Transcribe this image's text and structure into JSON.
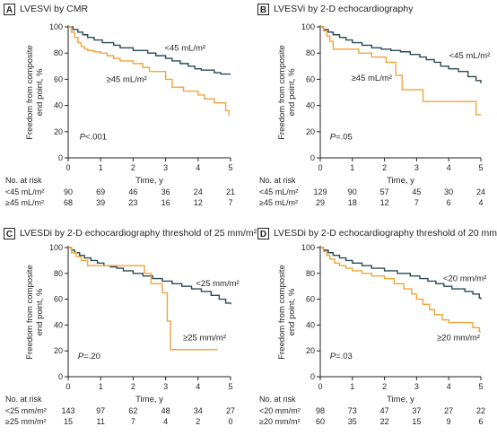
{
  "colors": {
    "lower": "#2b4a55",
    "higher": "#f2a33a",
    "axis": "#231f20"
  },
  "panels": [
    {
      "letter": "A",
      "title": "LVESVi by CMR",
      "ylabel": [
        "Freedom from composite",
        "end point, %"
      ],
      "xlabel": "Time, y",
      "pvalue": "P<.001",
      "low_label": "<45 mL/m²",
      "high_label": "≥45 mL/m²",
      "risk_title": "No. at risk",
      "risk_rows": [
        {
          "label": "<45 mL/m²",
          "values": [
            90,
            69,
            46,
            36,
            24,
            21
          ]
        },
        {
          "label": "≥45 mL/m²",
          "values": [
            68,
            39,
            23,
            16,
            12,
            7
          ]
        }
      ]
    },
    {
      "letter": "B",
      "title": "LVESVi by 2-D echocardiography",
      "ylabel": [
        "Freedom from composite",
        "end point, %"
      ],
      "xlabel": "Time, y",
      "pvalue": "P=.05",
      "low_label": "<45 mL/m²",
      "high_label": "≥45 mL/m²",
      "risk_title": "No. at risk",
      "risk_rows": [
        {
          "label": "<45 mL/m²",
          "values": [
            129,
            90,
            57,
            45,
            30,
            24
          ]
        },
        {
          "label": "≥45 mL/m²",
          "values": [
            29,
            18,
            12,
            7,
            6,
            4
          ]
        }
      ]
    },
    {
      "letter": "C",
      "title": "LVESDi by 2-D echocardiography threshold of 25 mm/m²",
      "ylabel": [
        "Freedom from composite",
        "end point, %"
      ],
      "xlabel": "Time, y",
      "pvalue": "P=.20",
      "low_label": "<25 mm/m²",
      "high_label": "≥25 mm/m²",
      "risk_title": "No. at risk",
      "risk_rows": [
        {
          "label": "<25 mm/m²",
          "values": [
            143,
            97,
            62,
            48,
            34,
            27
          ]
        },
        {
          "label": "≥25 mm/m²",
          "values": [
            15,
            11,
            7,
            4,
            2,
            0
          ]
        }
      ]
    },
    {
      "letter": "D",
      "title": "LVESDi by 2-D echocardiography threshold of 20 mm/m²",
      "ylabel": [
        "Freedom from composite",
        "end point, %"
      ],
      "xlabel": "Time, y",
      "pvalue": "P=.03",
      "low_label": "<20 mm/m²",
      "high_label": "≥20 mm/m²",
      "risk_title": "No. at risk",
      "risk_rows": [
        {
          "label": "<20 mm/m²",
          "values": [
            98,
            73,
            47,
            37,
            27,
            22
          ]
        },
        {
          "label": "≥20 mm/m²",
          "values": [
            60,
            35,
            22,
            15,
            9,
            6
          ]
        }
      ]
    }
  ],
  "chart_data": [
    {
      "type": "line",
      "step": true,
      "xlim": [
        0,
        5
      ],
      "ylim": [
        0,
        100
      ],
      "xticks": [
        0,
        1,
        2,
        3,
        4,
        5
      ],
      "yticks": [
        0,
        20,
        40,
        60,
        80,
        100
      ],
      "series": [
        {
          "name": "<45 mL/m²",
          "color": "lower",
          "x": [
            0,
            0.15,
            0.3,
            0.45,
            0.6,
            0.8,
            1.05,
            1.4,
            1.6,
            2.0,
            2.45,
            2.7,
            3.0,
            3.2,
            3.45,
            3.7,
            3.9,
            4.1,
            4.5,
            4.7,
            5.0
          ],
          "y": [
            100,
            98,
            96,
            94,
            92,
            90,
            88,
            86,
            84,
            82,
            80,
            78,
            76,
            74,
            72,
            70,
            68,
            67,
            65,
            64,
            64
          ]
        },
        {
          "name": "≥45 mL/m²",
          "color": "higher",
          "x": [
            0,
            0.1,
            0.2,
            0.3,
            0.4,
            0.5,
            0.6,
            0.8,
            1.0,
            1.2,
            1.4,
            1.6,
            2.0,
            2.3,
            2.5,
            3.0,
            3.2,
            3.55,
            4.0,
            4.2,
            4.5,
            4.85,
            4.95
          ],
          "y": [
            100,
            96,
            92,
            88,
            85,
            83,
            82,
            81,
            80,
            78,
            76,
            74,
            72,
            69,
            66,
            60,
            54,
            51,
            48,
            45,
            42,
            36,
            32
          ]
        }
      ]
    },
    {
      "type": "line",
      "step": true,
      "xlim": [
        0,
        5
      ],
      "ylim": [
        0,
        100
      ],
      "xticks": [
        0,
        1,
        2,
        3,
        4,
        5
      ],
      "yticks": [
        0,
        20,
        40,
        60,
        80,
        100
      ],
      "series": [
        {
          "name": "<45 mL/m²",
          "color": "lower",
          "x": [
            0,
            0.1,
            0.25,
            0.4,
            0.6,
            0.8,
            1.0,
            1.3,
            1.6,
            1.9,
            2.2,
            2.5,
            2.8,
            3.1,
            3.3,
            3.55,
            3.75,
            4.0,
            4.3,
            4.6,
            4.85,
            5.0
          ],
          "y": [
            100,
            98,
            96,
            94,
            92,
            90,
            88,
            86,
            84,
            83,
            82,
            81,
            79,
            77,
            75,
            73,
            70,
            68,
            66,
            62,
            59,
            57
          ]
        },
        {
          "name": "≥45 mL/m²",
          "color": "higher",
          "x": [
            0,
            0.1,
            0.2,
            0.3,
            0.4,
            1.2,
            1.6,
            2.05,
            2.35,
            2.55,
            3.2,
            4.85,
            5.0
          ],
          "y": [
            100,
            97,
            93,
            89,
            83,
            80,
            77,
            73,
            63,
            52,
            43,
            33,
            33
          ]
        }
      ]
    },
    {
      "type": "line",
      "step": true,
      "xlim": [
        0,
        5
      ],
      "ylim": [
        0,
        100
      ],
      "xticks": [
        0,
        1,
        2,
        3,
        4,
        5
      ],
      "yticks": [
        0,
        20,
        40,
        60,
        80,
        100
      ],
      "series": [
        {
          "name": "<25 mm/m²",
          "color": "lower",
          "x": [
            0,
            0.1,
            0.2,
            0.35,
            0.5,
            0.7,
            0.9,
            1.1,
            1.3,
            1.5,
            1.7,
            2.0,
            2.3,
            2.6,
            2.9,
            3.2,
            3.5,
            3.8,
            4.1,
            4.4,
            4.65,
            4.85,
            5.0
          ],
          "y": [
            100,
            98,
            96,
            94,
            92,
            90,
            88,
            86,
            85,
            84,
            82,
            80,
            78,
            76,
            74,
            72,
            70,
            68,
            66,
            63,
            60,
            57,
            56
          ]
        },
        {
          "name": "≥25 mm/m²",
          "color": "higher",
          "x": [
            0,
            0.1,
            0.25,
            0.4,
            0.6,
            2.35,
            2.55,
            2.9,
            3.05,
            3.15,
            4.6
          ],
          "y": [
            100,
            96,
            93,
            90,
            86,
            80,
            72,
            65,
            43,
            21,
            21
          ]
        }
      ]
    },
    {
      "type": "line",
      "step": true,
      "xlim": [
        0,
        5
      ],
      "ylim": [
        0,
        100
      ],
      "xticks": [
        0,
        1,
        2,
        3,
        4,
        5
      ],
      "yticks": [
        0,
        20,
        40,
        60,
        80,
        100
      ],
      "series": [
        {
          "name": "<20 mm/m²",
          "color": "lower",
          "x": [
            0,
            0.1,
            0.25,
            0.4,
            0.6,
            0.8,
            1.0,
            1.3,
            1.6,
            2.0,
            2.4,
            2.8,
            3.1,
            3.35,
            3.6,
            3.85,
            4.1,
            4.5,
            4.75,
            4.95,
            5.0
          ],
          "y": [
            100,
            98,
            96,
            94,
            92,
            90,
            88,
            86,
            84,
            82,
            80,
            78,
            76,
            74,
            72,
            70,
            68,
            66,
            64,
            61,
            60
          ]
        },
        {
          "name": "≥20 mm/m²",
          "color": "higher",
          "x": [
            0,
            0.1,
            0.2,
            0.3,
            0.45,
            0.6,
            0.8,
            1.0,
            1.3,
            1.6,
            2.0,
            2.3,
            2.6,
            2.85,
            3.0,
            3.2,
            3.4,
            3.55,
            3.8,
            4.0,
            4.4,
            4.75,
            4.95,
            5.0
          ],
          "y": [
            100,
            97,
            94,
            91,
            88,
            86,
            84,
            82,
            80,
            78,
            76,
            72,
            68,
            64,
            60,
            56,
            52,
            48,
            44,
            42,
            42,
            38,
            35,
            35
          ]
        }
      ]
    }
  ]
}
